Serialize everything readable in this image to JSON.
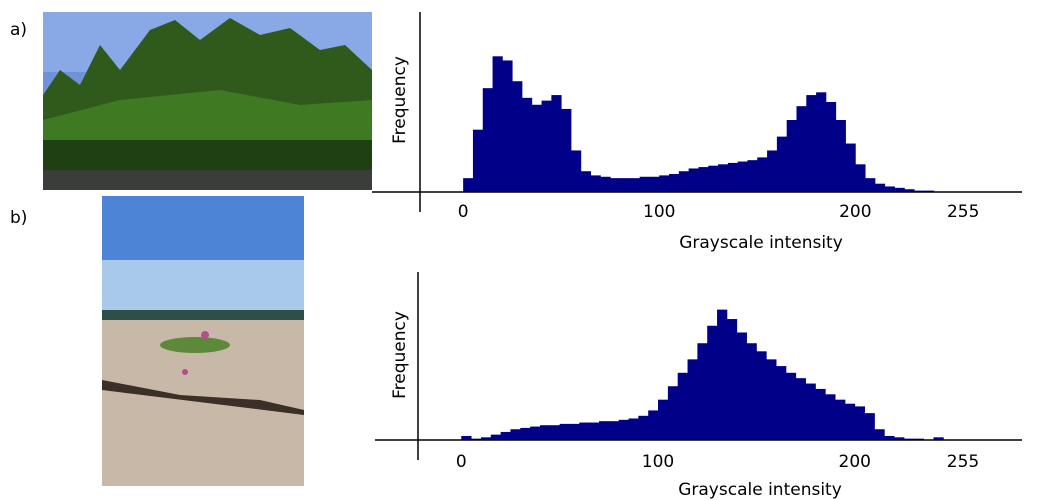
{
  "panel_labels": [
    "a)",
    "b)"
  ],
  "chart_data": [
    {
      "type": "histogram",
      "y_label": "Frequency",
      "x_label": "Grayscale intensity",
      "color": "#000088",
      "bins": [
        0,
        5,
        10,
        15,
        20,
        25,
        30,
        35,
        40,
        45,
        50,
        55,
        60,
        65,
        70,
        75,
        80,
        85,
        90,
        95,
        100,
        105,
        110,
        115,
        120,
        125,
        130,
        135,
        140,
        145,
        150,
        155,
        160,
        165,
        170,
        175,
        180,
        185,
        190,
        195,
        200,
        205,
        210,
        215,
        220,
        225,
        230,
        235,
        240,
        245,
        250,
        255
      ],
      "values": [
        10,
        45,
        75,
        98,
        95,
        80,
        68,
        63,
        66,
        70,
        60,
        30,
        15,
        12,
        11,
        10,
        10,
        10,
        11,
        11,
        12,
        13,
        15,
        17,
        18,
        19,
        20,
        21,
        22,
        23,
        25,
        30,
        40,
        52,
        62,
        70,
        72,
        65,
        52,
        35,
        20,
        10,
        6,
        4,
        3,
        2,
        1,
        1,
        0,
        0,
        0
      ],
      "xlim": [
        -22,
        285
      ],
      "xticks": [
        0,
        100,
        200,
        255
      ],
      "ylim": [
        0,
        130
      ]
    },
    {
      "type": "histogram",
      "y_label": "Frequency",
      "x_label": "Grayscale intensity",
      "color": "#000088",
      "bins": [
        0,
        5,
        10,
        15,
        20,
        25,
        30,
        35,
        40,
        45,
        50,
        55,
        60,
        65,
        70,
        75,
        80,
        85,
        90,
        95,
        100,
        105,
        110,
        115,
        120,
        125,
        130,
        135,
        140,
        145,
        150,
        155,
        160,
        165,
        170,
        175,
        180,
        185,
        190,
        195,
        200,
        205,
        210,
        215,
        220,
        225,
        230,
        235,
        240,
        245,
        250,
        255
      ],
      "values": [
        3,
        1,
        2,
        4,
        6,
        8,
        9,
        10,
        11,
        11,
        12,
        12,
        13,
        13,
        14,
        14,
        15,
        16,
        18,
        22,
        30,
        40,
        50,
        60,
        72,
        85,
        97,
        90,
        80,
        72,
        66,
        60,
        55,
        50,
        46,
        42,
        38,
        34,
        30,
        27,
        25,
        20,
        8,
        3,
        2,
        1,
        1,
        0,
        2,
        0,
        0
      ],
      "xlim": [
        -22,
        285
      ],
      "xticks": [
        0,
        100,
        200,
        255
      ],
      "ylim": [
        0,
        125
      ]
    }
  ]
}
